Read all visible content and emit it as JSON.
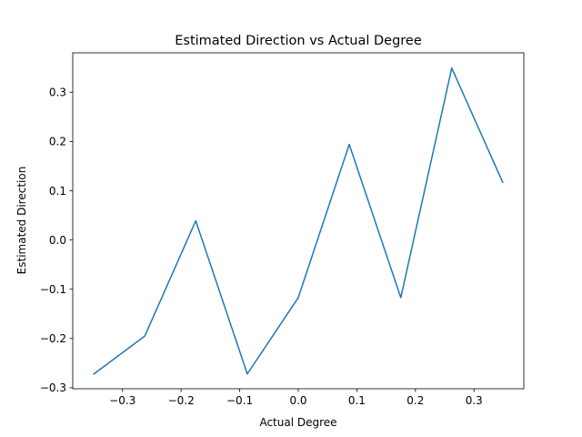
{
  "chart_data": {
    "type": "line",
    "title": "Estimated Direction vs Actual Degree",
    "xlabel": "Actual Degree",
    "ylabel": "Estimated Direction",
    "xlim": [
      -0.385,
      0.385
    ],
    "ylim": [
      -0.302,
      0.38
    ],
    "xticks": [
      -0.3,
      -0.2,
      -0.1,
      0.0,
      0.1,
      0.2,
      0.3
    ],
    "xtick_labels": [
      "−0.3",
      "−0.2",
      "−0.1",
      "0.0",
      "0.1",
      "0.2",
      "0.3"
    ],
    "yticks": [
      -0.3,
      -0.2,
      -0.1,
      0.0,
      0.1,
      0.2,
      0.3
    ],
    "ytick_labels": [
      "−0.3",
      "−0.2",
      "−0.1",
      "0.0",
      "0.1",
      "0.2",
      "0.3"
    ],
    "grid": false,
    "series": [
      {
        "color": "#1f77b4",
        "x": [
          -0.349,
          -0.262,
          -0.175,
          -0.087,
          0.0,
          0.087,
          0.175,
          0.262,
          0.349
        ],
        "y": [
          -0.272,
          -0.195,
          0.039,
          -0.272,
          -0.117,
          0.194,
          -0.117,
          0.349,
          0.117
        ]
      }
    ]
  }
}
